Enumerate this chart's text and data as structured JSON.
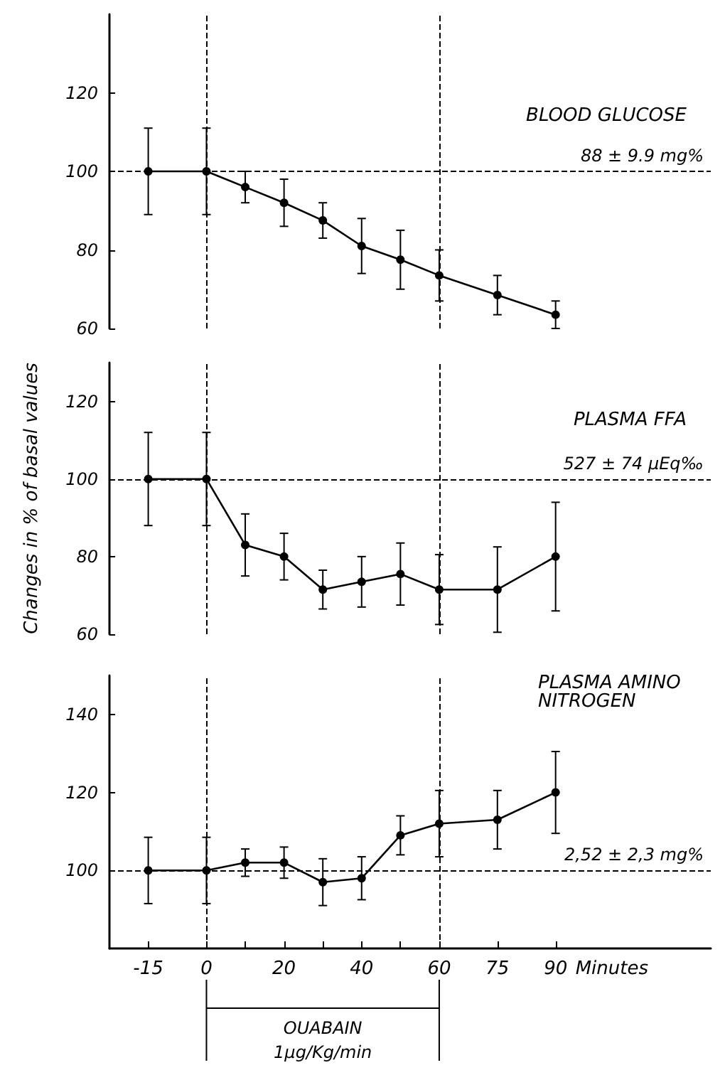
{
  "chart_data": [
    {
      "type": "line",
      "title": "BLOOD GLUCOSE",
      "x": [
        -15,
        0,
        10,
        20,
        30,
        40,
        50,
        60,
        75,
        90
      ],
      "values": [
        100,
        100,
        96,
        92,
        87.5,
        81,
        77.5,
        73.5,
        68.5,
        63.5
      ],
      "errors": [
        11,
        11,
        4,
        6,
        4.5,
        7,
        7.5,
        6.5,
        5,
        3.5
      ],
      "color": "#000000",
      "xlim": [
        -25,
        130
      ],
      "ylim": [
        60,
        140
      ],
      "yticks": [
        60,
        80,
        100,
        120
      ],
      "tick_labels": "y",
      "marker": "circle",
      "line_style": "solid",
      "ref_lines": [
        {
          "axis": "y",
          "value": 100,
          "label": "88 ± 9.9 mg%",
          "line_style": "dashed"
        },
        {
          "axis": "x",
          "value": 0,
          "line_style": "dashed"
        },
        {
          "axis": "x",
          "value": 60,
          "line_style": "dashed"
        }
      ]
    },
    {
      "type": "line",
      "title": "PLASMA FFA",
      "ylabel": "Changes in % of basal values",
      "x": [
        -15,
        0,
        10,
        20,
        30,
        40,
        50,
        60,
        75,
        90
      ],
      "values": [
        100,
        100,
        83,
        80,
        71.5,
        73.5,
        75.5,
        71.5,
        71.5,
        80
      ],
      "errors": [
        12,
        12,
        8,
        6,
        5,
        6.5,
        8,
        9,
        11,
        14
      ],
      "color": "#000000",
      "xlim": [
        -25,
        130
      ],
      "ylim": [
        60,
        130
      ],
      "yticks": [
        60,
        80,
        100,
        120
      ],
      "tick_labels": "y",
      "marker": "circle",
      "line_style": "solid",
      "ref_lines": [
        {
          "axis": "y",
          "value": 100,
          "label": "527 ± 74 μEq‰",
          "line_style": "dashed"
        },
        {
          "axis": "x",
          "value": 0,
          "line_style": "dashed"
        },
        {
          "axis": "x",
          "value": 60,
          "line_style": "dashed"
        }
      ]
    },
    {
      "type": "line",
      "title": "PLASMA AMINO NITROGEN",
      "xlabel": "Minutes",
      "annotations": [
        "OUABAIN",
        "1μg/Kg/min"
      ],
      "x": [
        -15,
        0,
        10,
        20,
        30,
        40,
        50,
        60,
        75,
        90
      ],
      "values": [
        100,
        100,
        102,
        102,
        97,
        98,
        109,
        112,
        113,
        120
      ],
      "errors": [
        8.5,
        8.5,
        3.5,
        4,
        6,
        5.5,
        5,
        8.5,
        7.5,
        10.5
      ],
      "color": "#000000",
      "xlim": [
        -25,
        130
      ],
      "xticks": [
        -15,
        0,
        {
          "value": 10,
          "label": null
        },
        20,
        {
          "value": 30,
          "label": null
        },
        40,
        {
          "value": 50,
          "label": null
        },
        60,
        75,
        90
      ],
      "ylim": [
        80,
        150
      ],
      "yticks": [
        100,
        120,
        140
      ],
      "marker": "circle",
      "line_style": "solid",
      "ref_lines": [
        {
          "axis": "y",
          "value": 100,
          "label": "2,52 ± 2,3 mg%",
          "line_style": "dashed"
        },
        {
          "axis": "x",
          "value": 0,
          "line_style": "dashed"
        },
        {
          "axis": "x",
          "value": 60,
          "line_style": "dashed"
        }
      ]
    }
  ]
}
